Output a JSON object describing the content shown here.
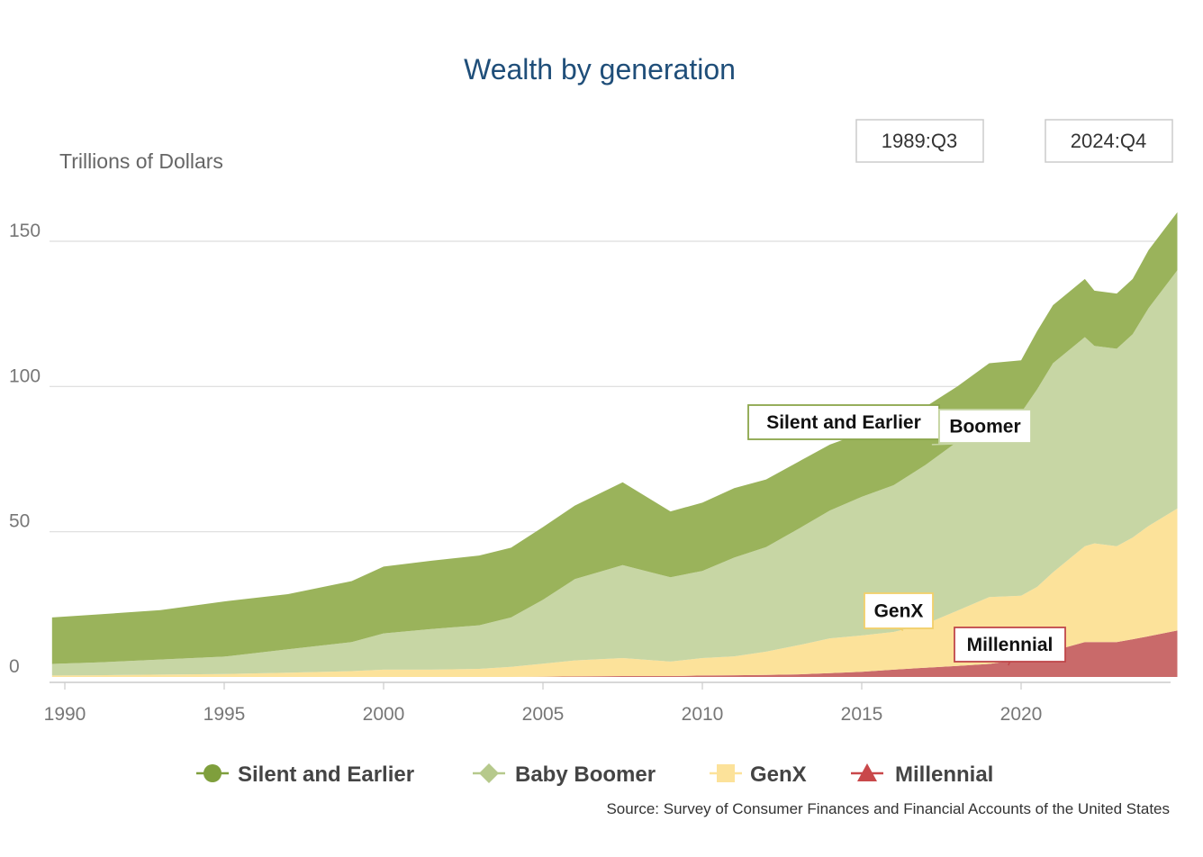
{
  "chart_data": {
    "type": "area",
    "stacked": true,
    "title": "Wealth by generation",
    "ylabel": "Trillions of Dollars",
    "xlabel": "",
    "ylim": [
      0,
      160
    ],
    "xlim": [
      1989.6,
      2024.9
    ],
    "y_ticks": [
      0,
      50,
      100,
      150
    ],
    "x_ticks": [
      1990,
      1995,
      2000,
      2005,
      2010,
      2015,
      2020
    ],
    "grid": true,
    "legend_position": "bottom",
    "range_start": "1989:Q3",
    "range_end": "2024:Q4",
    "source": "Source: Survey of Consumer Finances and Financial Accounts of the United States",
    "x": [
      1989.6,
      1991,
      1993,
      1995,
      1997,
      1999,
      2000,
      2001.5,
      2003,
      2004,
      2005,
      2006,
      2007.5,
      2009,
      2010,
      2011,
      2012,
      2013,
      2014,
      2015,
      2016,
      2017,
      2018,
      2019,
      2020,
      2020.5,
      2021,
      2022,
      2022.3,
      2023,
      2023.5,
      2024,
      2024.9
    ],
    "series": [
      {
        "name": "Millennial",
        "color": "#c96a6a",
        "values": [
          0,
          0,
          0,
          0,
          0,
          0,
          0,
          0,
          0,
          0,
          0.1,
          0.2,
          0.3,
          0.3,
          0.5,
          0.6,
          0.7,
          0.9,
          1.3,
          1.8,
          2.5,
          3.2,
          3.8,
          4.5,
          6,
          7,
          9,
          12,
          12,
          12,
          13,
          14,
          16
        ]
      },
      {
        "name": "GenX",
        "color": "#fce29a",
        "values": [
          0.5,
          0.6,
          0.8,
          1,
          1.5,
          2,
          2.5,
          2.5,
          2.8,
          3.5,
          4.5,
          5.5,
          6.2,
          5,
          6,
          6.5,
          8,
          10,
          12,
          12.5,
          13,
          15,
          19,
          23,
          22,
          24,
          27,
          33,
          34,
          33,
          35,
          38,
          42
        ]
      },
      {
        "name": "Baby Boomer",
        "color": "#c7d6a4",
        "values": [
          4,
          4.4,
          5.2,
          6,
          8,
          10,
          12.5,
          14,
          15,
          17,
          22,
          28,
          32,
          29,
          30,
          34,
          36,
          40,
          44,
          47.7,
          50.5,
          54.8,
          58.2,
          62.5,
          63,
          68,
          72,
          72,
          68,
          68,
          70,
          75,
          82
        ]
      },
      {
        "name": "Silent and Earlier",
        "color": "#9ab35b",
        "values": [
          16,
          16.5,
          17,
          19,
          19,
          21,
          23,
          23.5,
          24,
          24,
          25,
          25.3,
          28.5,
          22.7,
          23.5,
          23.9,
          23.3,
          23.1,
          22.7,
          22,
          21,
          20,
          19,
          18,
          18,
          20,
          20,
          20,
          19,
          19,
          19,
          20,
          20
        ]
      }
    ],
    "callouts": [
      {
        "label": "Silent and Earlier",
        "series": "Silent and Earlier"
      },
      {
        "label": "Boomer",
        "series": "Baby Boomer"
      },
      {
        "label": "GenX",
        "series": "GenX"
      },
      {
        "label": "Millennial",
        "series": "Millennial"
      }
    ],
    "legend": [
      {
        "label": "Silent and Earlier",
        "marker": "circle",
        "color": "#7f9f3c"
      },
      {
        "label": "Baby Boomer",
        "marker": "diamond",
        "color": "#b6c98c"
      },
      {
        "label": "GenX",
        "marker": "square",
        "color": "#fce29a"
      },
      {
        "label": "Millennial",
        "marker": "triangle",
        "color": "#c9484a"
      }
    ]
  }
}
